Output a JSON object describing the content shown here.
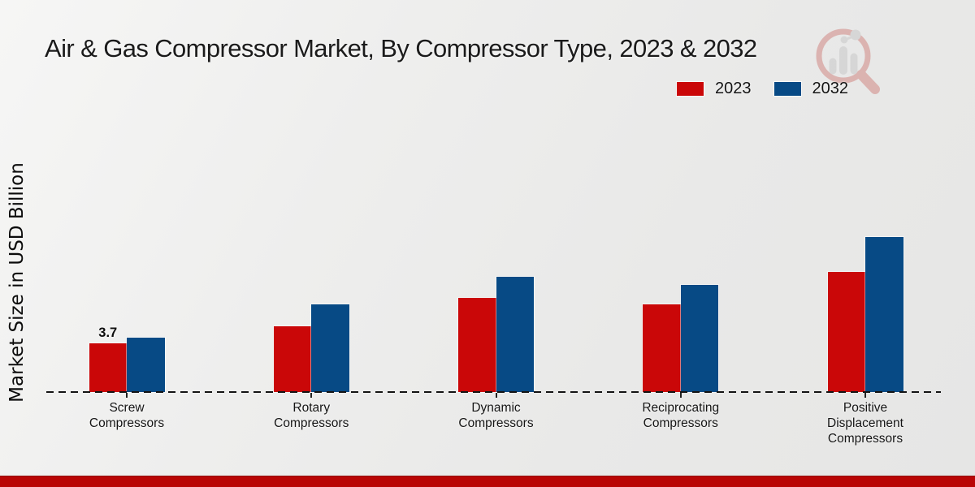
{
  "title": "Air & Gas Compressor Market, By Compressor Type, 2023 & 2032",
  "y_axis_label": "Market Size in USD Billion",
  "legend": {
    "items": [
      {
        "label": "2023",
        "color": "#ca0708"
      },
      {
        "label": "2032",
        "color": "#074a85"
      }
    ]
  },
  "watermark": {
    "name": "market-research-magnifier-logo",
    "ring_color": "#c0453f",
    "bars_color": "#b3b3b5"
  },
  "footer": {
    "accent_color": "#b90504"
  },
  "chart_data": {
    "type": "bar",
    "categories": [
      "Screw Compressors",
      "Rotary Compressors",
      "Dynamic Compressors",
      "Reciprocating Compressors",
      "Positive Displacement Compressors"
    ],
    "series": [
      {
        "name": "2023",
        "color": "#ca0708",
        "values": [
          3.7,
          5.0,
          7.1,
          6.6,
          9.1
        ]
      },
      {
        "name": "2032",
        "color": "#074a85",
        "values": [
          4.1,
          6.6,
          8.7,
          8.1,
          11.7
        ]
      }
    ],
    "data_labels": [
      {
        "series_index": 0,
        "category_index": 0,
        "text": "3.7"
      }
    ],
    "title": "Air & Gas Compressor Market, By Compressor Type, 2023 & 2032",
    "xlabel": "",
    "ylabel": "Market Size in USD Billion",
    "ylim": [
      0,
      12.5
    ],
    "grid": false,
    "y_axis_ticks_visible": false,
    "x_axis_style": "dashed-baseline",
    "legend_position": "top-right"
  }
}
